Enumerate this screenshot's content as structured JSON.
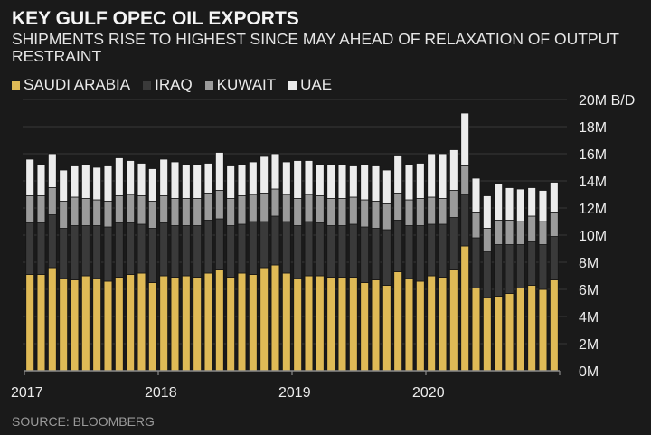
{
  "header": {
    "title": "KEY GULF OPEC OIL EXPORTS",
    "subtitle": "SHIPMENTS RISE TO HIGHEST SINCE MAY AHEAD OF RELAXATION OF OUTPUT RESTRAINT"
  },
  "footer": {
    "source": "SOURCE: BLOOMBERG"
  },
  "colors": {
    "saudi": "#dfba56",
    "iraq": "#3a3a3a",
    "kuwait": "#9b9b9b",
    "uae": "#ececec",
    "background": "#1a1a1a",
    "grid": "#2e2e2e"
  },
  "chart_data": {
    "type": "bar",
    "stacked": true,
    "title": "KEY GULF OPEC OIL EXPORTS",
    "subtitle": "SHIPMENTS RISE TO HIGHEST SINCE MAY AHEAD OF RELAXATION OF OUTPUT RESTRAINT",
    "ylabel": "B/D",
    "ylim": [
      0,
      20000000
    ],
    "y_ticks": [
      "0M",
      "2M",
      "4M",
      "6M",
      "8M",
      "10M",
      "12M",
      "14M",
      "16M",
      "18M",
      "20M B/D"
    ],
    "x_ticks": [
      "2017",
      "2018",
      "2019",
      "2020"
    ],
    "grid": true,
    "legend_placement": "top-left",
    "categories": [
      "2017-01",
      "2017-02",
      "2017-03",
      "2017-04",
      "2017-05",
      "2017-06",
      "2017-07",
      "2017-08",
      "2017-09",
      "2017-10",
      "2017-11",
      "2017-12",
      "2018-01",
      "2018-02",
      "2018-03",
      "2018-04",
      "2018-05",
      "2018-06",
      "2018-07",
      "2018-08",
      "2018-09",
      "2018-10",
      "2018-11",
      "2018-12",
      "2019-01",
      "2019-02",
      "2019-03",
      "2019-04",
      "2019-05",
      "2019-06",
      "2019-07",
      "2019-08",
      "2019-09",
      "2019-10",
      "2019-11",
      "2019-12",
      "2020-01",
      "2020-02",
      "2020-03",
      "2020-04",
      "2020-05",
      "2020-06",
      "2020-07",
      "2020-08",
      "2020-09",
      "2020-10",
      "2020-11",
      "2020-12"
    ],
    "series": [
      {
        "name": "SAUDI ARABIA",
        "values": [
          7.1,
          7.1,
          7.6,
          6.8,
          6.7,
          7.0,
          6.8,
          6.6,
          6.9,
          7.1,
          7.2,
          6.5,
          7.0,
          6.9,
          7.0,
          6.9,
          7.2,
          7.5,
          6.9,
          7.2,
          7.1,
          7.6,
          7.8,
          7.2,
          6.8,
          7.0,
          7.0,
          6.9,
          6.9,
          6.9,
          6.5,
          6.7,
          6.3,
          7.3,
          6.8,
          6.6,
          7.0,
          6.9,
          7.5,
          9.2,
          6.1,
          5.4,
          5.5,
          5.7,
          6.1,
          6.3,
          6.0,
          6.7
        ]
      },
      {
        "name": "IRAQ",
        "values": [
          3.8,
          3.8,
          3.9,
          3.7,
          4.0,
          3.7,
          3.9,
          4.0,
          4.0,
          3.8,
          3.6,
          4.0,
          3.9,
          3.8,
          3.7,
          3.8,
          3.9,
          3.7,
          3.8,
          3.6,
          3.9,
          3.4,
          3.6,
          3.8,
          3.9,
          4.0,
          3.9,
          3.8,
          3.8,
          3.9,
          4.1,
          3.8,
          4.1,
          3.8,
          3.9,
          4.1,
          3.8,
          3.9,
          3.8,
          3.8,
          3.7,
          3.4,
          3.8,
          3.6,
          3.2,
          3.2,
          3.3,
          3.2
        ]
      },
      {
        "name": "KUWAIT",
        "values": [
          2.0,
          2.0,
          2.0,
          2.0,
          2.1,
          2.0,
          1.9,
          1.9,
          2.0,
          2.1,
          2.1,
          2.0,
          2.0,
          2.0,
          2.0,
          2.0,
          2.0,
          2.1,
          2.0,
          2.1,
          2.0,
          2.1,
          2.0,
          2.0,
          2.0,
          2.0,
          2.0,
          2.0,
          2.0,
          2.0,
          2.0,
          2.0,
          1.9,
          2.0,
          1.9,
          2.0,
          2.0,
          1.9,
          2.0,
          2.1,
          1.9,
          1.7,
          1.8,
          1.8,
          1.7,
          1.9,
          1.7,
          1.8
        ]
      },
      {
        "name": "UAE",
        "values": [
          2.7,
          2.3,
          2.5,
          2.3,
          2.3,
          2.5,
          2.4,
          2.6,
          2.8,
          2.5,
          2.4,
          2.4,
          2.7,
          2.7,
          2.5,
          2.5,
          2.2,
          2.8,
          2.4,
          2.3,
          2.4,
          2.7,
          2.6,
          2.4,
          2.8,
          2.5,
          2.3,
          2.5,
          2.5,
          2.3,
          2.6,
          2.6,
          2.5,
          2.8,
          2.6,
          2.6,
          3.2,
          3.3,
          3.0,
          3.9,
          2.5,
          2.4,
          2.7,
          2.4,
          2.4,
          2.1,
          2.3,
          2.2
        ]
      }
    ],
    "units": "million barrels per day"
  }
}
